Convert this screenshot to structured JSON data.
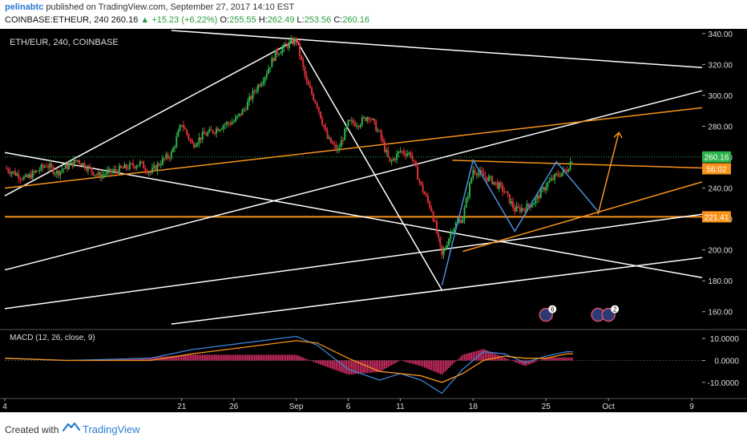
{
  "header": {
    "author": "pelinabtc",
    "published_text": " published on TradingView.com, September 27, 2017 14:10 EST",
    "symbol": "COINBASE:ETHEUR, 240",
    "price": "260.16",
    "change_icon": "up-triangle-icon",
    "change": "+15.23 (+6.22%)",
    "o_label": "O:",
    "o_val": "255.55",
    "h_label": "H:",
    "h_val": "262.49",
    "l_label": "L:",
    "l_val": "253.56",
    "c_label": "C:",
    "c_val": "260.16"
  },
  "footer": {
    "created_with": "Created with",
    "brand": "TradingView",
    "logo_icon": "tradingview-logo-icon"
  },
  "chart_data": [
    {
      "type": "candlestick",
      "title": "ETH/EUR, 240, COINBASE",
      "ylim": [
        150,
        342
      ],
      "xlim": [
        "2017-08-04",
        "2017-10-10"
      ],
      "y_ticks": [
        160,
        180,
        200,
        220,
        240,
        260,
        280,
        300,
        320,
        340
      ],
      "y_tick_labels": [
        "160.00",
        "180.00",
        "200.00",
        "220.00",
        "240.00",
        "260.00",
        "280.00",
        "300.00",
        "320.00",
        "340.00"
      ],
      "x_ticks": [
        "2017-08-04",
        "2017-08-21",
        "2017-08-26",
        "2017-09-01",
        "2017-09-06",
        "2017-09-11",
        "2017-09-18",
        "2017-09-25",
        "2017-10-01",
        "2017-10-09"
      ],
      "x_tick_labels": [
        "4",
        "21",
        "26",
        "Sep",
        "6",
        "11",
        "18",
        "25",
        "Oct",
        "9"
      ],
      "price_labels": [
        {
          "text": "260.16",
          "value": 260.16,
          "color": "#2bb34a"
        },
        {
          "text": "56:02",
          "value": 252.5,
          "color": "#f7931a"
        },
        {
          "text": "221.41",
          "value": 221.41,
          "color": "#f7931a"
        }
      ],
      "horizontal_line": {
        "value": 221.41,
        "color": "#f7931a"
      },
      "price_series": [
        [
          "2017-08-04",
          253
        ],
        [
          "2017-08-06",
          246
        ],
        [
          "2017-08-08",
          255
        ],
        [
          "2017-08-09",
          250
        ],
        [
          "2017-08-11",
          258
        ],
        [
          "2017-08-13",
          248
        ],
        [
          "2017-08-15",
          252
        ],
        [
          "2017-08-17",
          256
        ],
        [
          "2017-08-18",
          250
        ],
        [
          "2017-08-19",
          257
        ],
        [
          "2017-08-20",
          262
        ],
        [
          "2017-08-21",
          282
        ],
        [
          "2017-08-22",
          268
        ],
        [
          "2017-08-23",
          274
        ],
        [
          "2017-08-24",
          277
        ],
        [
          "2017-08-25",
          281
        ],
        [
          "2017-08-26",
          283
        ],
        [
          "2017-08-27",
          291
        ],
        [
          "2017-08-28",
          303
        ],
        [
          "2017-08-29",
          313
        ],
        [
          "2017-08-30",
          327
        ],
        [
          "2017-08-31",
          332
        ],
        [
          "2017-09-01",
          336
        ],
        [
          "2017-09-02",
          308
        ],
        [
          "2017-09-03",
          294
        ],
        [
          "2017-09-04",
          272
        ],
        [
          "2017-09-05",
          264
        ],
        [
          "2017-09-06",
          282
        ],
        [
          "2017-09-07",
          282
        ],
        [
          "2017-09-08",
          287
        ],
        [
          "2017-09-09",
          275
        ],
        [
          "2017-09-10",
          256
        ],
        [
          "2017-09-11",
          264
        ],
        [
          "2017-09-12",
          262
        ],
        [
          "2017-09-13",
          241
        ],
        [
          "2017-09-14",
          226
        ],
        [
          "2017-09-15",
          196
        ],
        [
          "2017-09-16",
          214
        ],
        [
          "2017-09-17",
          221
        ],
        [
          "2017-09-18",
          252
        ],
        [
          "2017-09-19",
          248
        ],
        [
          "2017-09-20",
          244
        ],
        [
          "2017-09-21",
          238
        ],
        [
          "2017-09-22",
          226
        ],
        [
          "2017-09-23",
          227
        ],
        [
          "2017-09-24",
          232
        ],
        [
          "2017-09-25",
          242
        ],
        [
          "2017-09-26",
          248
        ],
        [
          "2017-09-27",
          252
        ],
        [
          "2017-09-27T14:00",
          260.16
        ]
      ],
      "trendlines_white": [
        [
          [
            "2017-08-04",
            235
          ],
          [
            "2017-09-01",
            336
          ],
          [
            "2017-09-15",
            174
          ]
        ],
        [
          [
            "2017-08-04",
            187
          ],
          [
            "2017-10-10",
            303
          ]
        ],
        [
          [
            "2017-08-04",
            263
          ],
          [
            "2017-10-10",
            182
          ]
        ],
        [
          [
            "2017-08-04",
            162
          ],
          [
            "2017-10-10",
            223
          ]
        ],
        [
          [
            "2017-08-20",
            152
          ],
          [
            "2017-10-10",
            195
          ]
        ],
        [
          [
            "2017-08-20",
            342
          ],
          [
            "2017-10-10",
            318
          ]
        ]
      ],
      "trendlines_orange": [
        [
          [
            "2017-08-04",
            240
          ],
          [
            "2017-10-10",
            292
          ]
        ],
        [
          [
            "2017-09-16",
            258
          ],
          [
            "2017-10-10",
            253
          ]
        ],
        [
          [
            "2017-09-17",
            199
          ],
          [
            "2017-10-10",
            244
          ]
        ]
      ],
      "pattern_blue": [
        [
          "2017-09-15",
          177
        ],
        [
          "2017-09-18",
          258
        ],
        [
          "2017-09-22",
          212
        ],
        [
          "2017-09-26",
          257
        ],
        [
          "2017-09-30",
          225
        ]
      ],
      "projection_orange": [
        [
          "2017-09-30",
          223
        ],
        [
          "2017-10-02",
          276
        ]
      ],
      "event_markers": [
        {
          "date": "2017-09-25",
          "value": 158,
          "count": "6"
        },
        {
          "date": "2017-09-30",
          "value": 158,
          "count": ""
        },
        {
          "date": "2017-10-01",
          "value": 158,
          "count": "2"
        }
      ]
    },
    {
      "type": "line+bar",
      "title": "MACD (12, 26, close, 9)",
      "ylim": [
        -17,
        13
      ],
      "y_ticks": [
        10,
        0,
        -10
      ],
      "y_tick_labels": [
        "10.0000",
        "0.0000",
        "-10.0000"
      ],
      "series": [
        {
          "color": "#3b82d6",
          "values": [
            [
              "2017-08-04",
              1
            ],
            [
              "2017-08-10",
              0
            ],
            [
              "2017-08-18",
              1
            ],
            [
              "2017-08-22",
              5
            ],
            [
              "2017-08-27",
              8
            ],
            [
              "2017-09-01",
              11
            ],
            [
              "2017-09-03",
              7
            ],
            [
              "2017-09-06",
              -4
            ],
            [
              "2017-09-09",
              -9
            ],
            [
              "2017-09-11",
              -6
            ],
            [
              "2017-09-13",
              -9
            ],
            [
              "2017-09-15",
              -15
            ],
            [
              "2017-09-17",
              -4
            ],
            [
              "2017-09-19",
              4
            ],
            [
              "2017-09-21",
              3
            ],
            [
              "2017-09-23",
              -1
            ],
            [
              "2017-09-25",
              2
            ],
            [
              "2017-09-27",
              4
            ],
            [
              "2017-09-27T14:00",
              4
            ]
          ]
        },
        {
          "color": "#f7931a",
          "values": [
            [
              "2017-08-04",
              1
            ],
            [
              "2017-08-10",
              0
            ],
            [
              "2017-08-18",
              0
            ],
            [
              "2017-08-22",
              3
            ],
            [
              "2017-08-27",
              6
            ],
            [
              "2017-09-01",
              9
            ],
            [
              "2017-09-03",
              8
            ],
            [
              "2017-09-06",
              1
            ],
            [
              "2017-09-09",
              -5
            ],
            [
              "2017-09-11",
              -6
            ],
            [
              "2017-09-13",
              -7
            ],
            [
              "2017-09-15",
              -10
            ],
            [
              "2017-09-17",
              -6
            ],
            [
              "2017-09-19",
              0
            ],
            [
              "2017-09-21",
              2
            ],
            [
              "2017-09-23",
              1
            ],
            [
              "2017-09-25",
              1
            ],
            [
              "2017-09-27",
              3
            ],
            [
              "2017-09-27T14:00",
              3
            ]
          ]
        }
      ]
    }
  ]
}
